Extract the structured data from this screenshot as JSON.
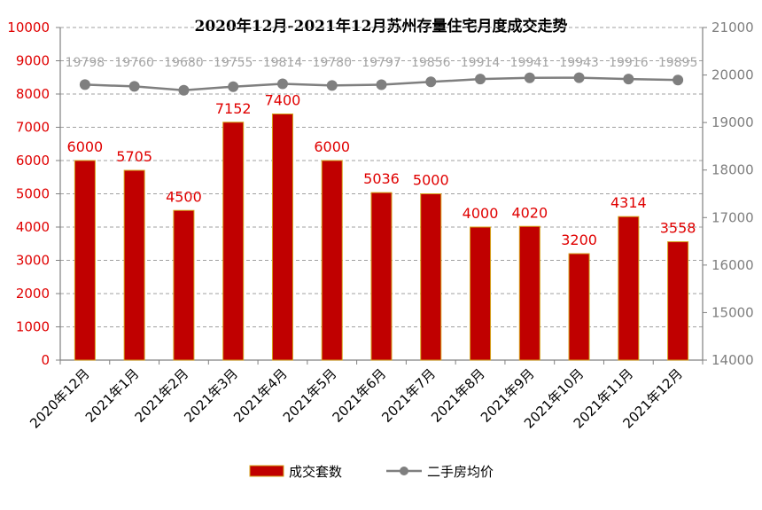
{
  "chart_data": {
    "type": "bar",
    "title": "2020年12月-2021年12月苏州存量住宅月度成交走势",
    "categories": [
      "2020年12月",
      "2021年1月",
      "2021年2月",
      "2021年3月",
      "2021年4月",
      "2021年5月",
      "2021年6月",
      "2021年7月",
      "2021年8月",
      "2021年9月",
      "2021年10月",
      "2021年11月",
      "2021年12月"
    ],
    "series": [
      {
        "name": "成交套数",
        "type": "bar",
        "axis": "left",
        "color": "#c00000",
        "values": [
          6000,
          5705,
          4500,
          7152,
          7400,
          6000,
          5036,
          5000,
          4000,
          4020,
          3200,
          4314,
          3558
        ]
      },
      {
        "name": "二手房均价",
        "type": "line",
        "axis": "right",
        "color": "#7f7f7f",
        "values": [
          19798,
          19760,
          19680,
          19755,
          19814,
          19780,
          19797,
          19856,
          19914,
          19941,
          19943,
          19916,
          19895
        ]
      }
    ],
    "y_left": {
      "min": 0,
      "max": 10000,
      "step": 1000,
      "ticks": [
        0,
        1000,
        2000,
        3000,
        4000,
        5000,
        6000,
        7000,
        8000,
        9000,
        10000
      ]
    },
    "y_right": {
      "min": 14000,
      "max": 21000,
      "step": 1000,
      "ticks": [
        14000,
        15000,
        16000,
        17000,
        18000,
        19000,
        20000,
        21000
      ]
    },
    "grid": true,
    "legend": "bottom-center",
    "xlabel": "",
    "ylabel": ""
  }
}
